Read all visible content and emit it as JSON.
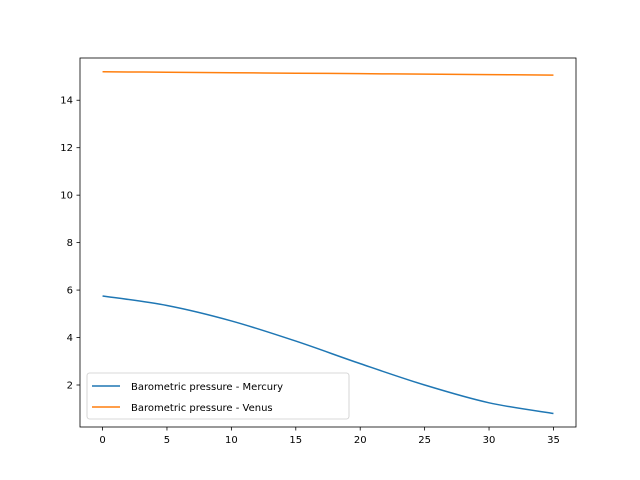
{
  "chart_data": {
    "type": "line",
    "title": "",
    "xlabel": "",
    "ylabel": "",
    "xlim": [
      -1.75,
      36.75
    ],
    "ylim": [
      0.23,
      15.78
    ],
    "xticks": [
      0,
      5,
      10,
      15,
      20,
      25,
      30,
      35
    ],
    "yticks": [
      2,
      4,
      6,
      8,
      10,
      12,
      14
    ],
    "grid": false,
    "legend_position": "lower-left",
    "series": [
      {
        "name": "Barometric pressure - Mercury",
        "color": "#1f77b4",
        "x": [
          0,
          5,
          10,
          15,
          20,
          25,
          30,
          35
        ],
        "values": [
          5.75,
          5.35,
          4.7,
          3.85,
          2.9,
          2.0,
          1.25,
          0.8
        ]
      },
      {
        "name": "Barometric pressure - Venus",
        "color": "#ff7f0e",
        "x": [
          0,
          5,
          10,
          15,
          20,
          25,
          30,
          35
        ],
        "values": [
          15.2,
          15.18,
          15.16,
          15.14,
          15.12,
          15.1,
          15.08,
          15.06
        ]
      }
    ]
  }
}
